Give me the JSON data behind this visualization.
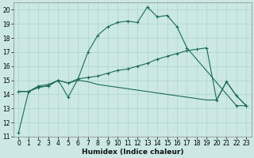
{
  "xlabel": "Humidex (Indice chaleur)",
  "bg_color": "#cce8e4",
  "grid_color": "#aad4cc",
  "line_color": "#1a6b5a",
  "xlim": [
    -0.5,
    23.5
  ],
  "ylim": [
    11,
    20.5
  ],
  "yticks": [
    11,
    12,
    13,
    14,
    15,
    16,
    17,
    18,
    19,
    20
  ],
  "xticks": [
    0,
    1,
    2,
    3,
    4,
    5,
    6,
    7,
    8,
    9,
    10,
    11,
    12,
    13,
    14,
    15,
    16,
    17,
    18,
    19,
    20,
    21,
    22,
    23
  ],
  "line1_x": [
    0,
    1,
    2,
    3,
    4,
    5,
    6,
    7,
    8,
    9,
    10,
    11,
    12,
    13,
    14,
    15,
    16,
    17,
    22,
    23
  ],
  "line1_y": [
    11.3,
    14.2,
    14.6,
    14.7,
    15.0,
    13.8,
    15.1,
    17.0,
    18.2,
    18.8,
    19.1,
    19.2,
    19.1,
    20.2,
    19.5,
    19.6,
    18.8,
    17.3,
    13.2,
    13.2
  ],
  "line2_x": [
    0,
    1,
    2,
    3,
    4,
    5,
    6,
    7,
    8,
    9,
    10,
    11,
    12,
    13,
    14,
    15,
    16,
    17,
    18,
    19,
    20,
    21,
    22,
    23
  ],
  "line2_y": [
    14.2,
    14.2,
    14.5,
    14.6,
    15.0,
    14.8,
    15.1,
    15.2,
    15.3,
    15.5,
    15.7,
    15.8,
    16.0,
    16.2,
    16.5,
    16.7,
    16.9,
    17.1,
    17.2,
    17.3,
    13.6,
    14.9,
    13.9,
    13.2
  ],
  "line3_x": [
    0,
    1,
    2,
    3,
    4,
    5,
    6,
    7,
    8,
    9,
    10,
    11,
    12,
    13,
    14,
    15,
    16,
    17,
    18,
    19,
    20,
    21,
    22,
    23
  ],
  "line3_y": [
    14.2,
    14.2,
    14.5,
    14.6,
    15.0,
    14.8,
    15.0,
    14.9,
    14.7,
    14.6,
    14.5,
    14.4,
    14.3,
    14.2,
    14.1,
    14.0,
    13.9,
    13.8,
    13.7,
    13.6,
    13.6,
    14.9,
    13.9,
    13.2
  ],
  "tick_fontsize": 5.5,
  "xlabel_fontsize": 6.5,
  "marker_size": 3,
  "linewidth": 0.8
}
